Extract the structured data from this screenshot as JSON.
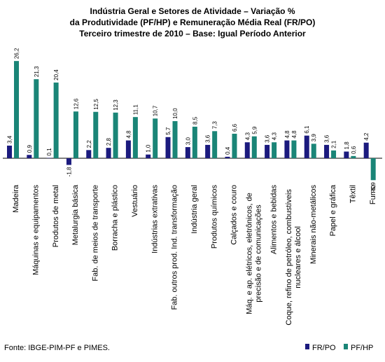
{
  "chart_data": {
    "type": "bar",
    "title": [
      "Indústria Geral e Setores de Atividade – Variação %",
      "da Produtividade (PF/HP) e Remuneração Média Real (FR/PO)",
      "Terceiro trimestre de 2010 – Base: Igual Período Anterior"
    ],
    "categories": [
      "Madeira",
      "Máquinas e equipamentos",
      "Produtos de metal",
      "Metalurgia básica",
      "Fab. de meios de transporte",
      "Borracha e plástico",
      "Vestuário",
      "Indústrias extrativas",
      "Fab. outros prod. Ind. transformação",
      "Indústria geral",
      "Produtos químicos",
      "Calçados e couro",
      "Máq. e ap. elétricos, eletrônicos, de\nprecisão e de comunicações",
      "Alimentos e bebidas",
      "Coque, refino de petróleo, combustíveis\nnucleares e álcool",
      "Minerais não-metálicos",
      "Papel e gráfica",
      "Têxtil",
      "Fumo"
    ],
    "series": [
      {
        "name": "FR/PO",
        "color": "#1b1a7e",
        "values": [
          3.4,
          0.9,
          0.1,
          -1.8,
          2.2,
          2.8,
          4.8,
          1.0,
          5.7,
          3.0,
          3.6,
          0.4,
          4.3,
          3.6,
          4.8,
          6.1,
          3.6,
          1.8,
          4.2
        ],
        "value_labels": [
          "3,4",
          "0,9",
          "0,1",
          "-1,8",
          "2,2",
          "2,8",
          "4,8",
          "1,0",
          "5,7",
          "3,0",
          "3,6",
          "0,4",
          "4,3",
          "3,6",
          "4,8",
          "6,1",
          "3,6",
          "1,8",
          "4,2"
        ]
      },
      {
        "name": "PF/HP",
        "color": "#1a8577",
        "values": [
          26.2,
          21.3,
          20.4,
          12.6,
          12.5,
          12.3,
          11.1,
          10.7,
          10.0,
          8.5,
          7.3,
          6.6,
          5.9,
          4.3,
          4.8,
          3.9,
          2.1,
          0.6,
          -5.9
        ],
        "value_labels": [
          "26,2",
          "21,3",
          "20,4",
          "12,6",
          "12,5",
          "12,3",
          "11,1",
          "10,7",
          "10,0",
          "8,5",
          "7,3",
          "6,6",
          "5,9",
          "4,3",
          "4,8",
          "3,9",
          "2,1",
          "0,6",
          "-5,9"
        ]
      }
    ],
    "source": "Fonte: IBGE-PIM-PF e PIMES."
  }
}
